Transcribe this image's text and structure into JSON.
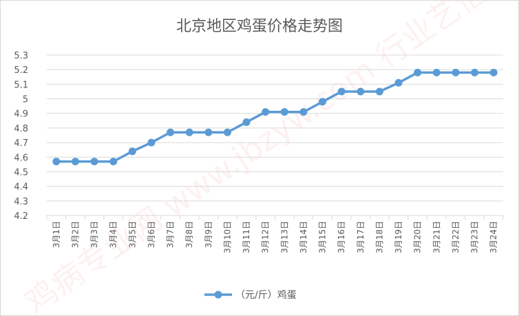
{
  "chart_data": {
    "type": "line",
    "title": "北京地区鸡蛋价格走势图",
    "xlabel": "",
    "ylabel": "",
    "categories": [
      "3月1日",
      "3月2日",
      "3月3日",
      "3月4日",
      "3月5日",
      "3月6日",
      "3月7日",
      "3月8日",
      "3月9日",
      "3月10日",
      "3月11日",
      "3月12日",
      "3月13日",
      "3月14日",
      "3月15日",
      "3月16日",
      "3月17日",
      "3月18日",
      "3月19日",
      "3月20日",
      "3月21日",
      "3月22日",
      "3月23日",
      "3月24日"
    ],
    "series": [
      {
        "name": "（元/斤）鸡蛋",
        "values": [
          4.57,
          4.57,
          4.57,
          4.57,
          4.64,
          4.7,
          4.77,
          4.77,
          4.77,
          4.77,
          4.84,
          4.91,
          4.91,
          4.91,
          4.98,
          5.05,
          5.05,
          5.05,
          5.11,
          5.18,
          5.18,
          5.18,
          5.18,
          5.18
        ]
      }
    ],
    "ylim": [
      4.2,
      5.3
    ],
    "yticks": [
      4.2,
      4.3,
      4.4,
      4.5,
      4.6,
      4.7,
      4.8,
      4.9,
      5,
      5.1,
      5.2,
      5.3
    ],
    "grid": "horizontal",
    "legend_position": "bottom",
    "colors": {
      "series": "#5b9bd5",
      "grid": "#d9d9d9",
      "text": "#595959"
    },
    "watermark": "鸡病专业网 www.jbzyw.com 行业艺信"
  }
}
